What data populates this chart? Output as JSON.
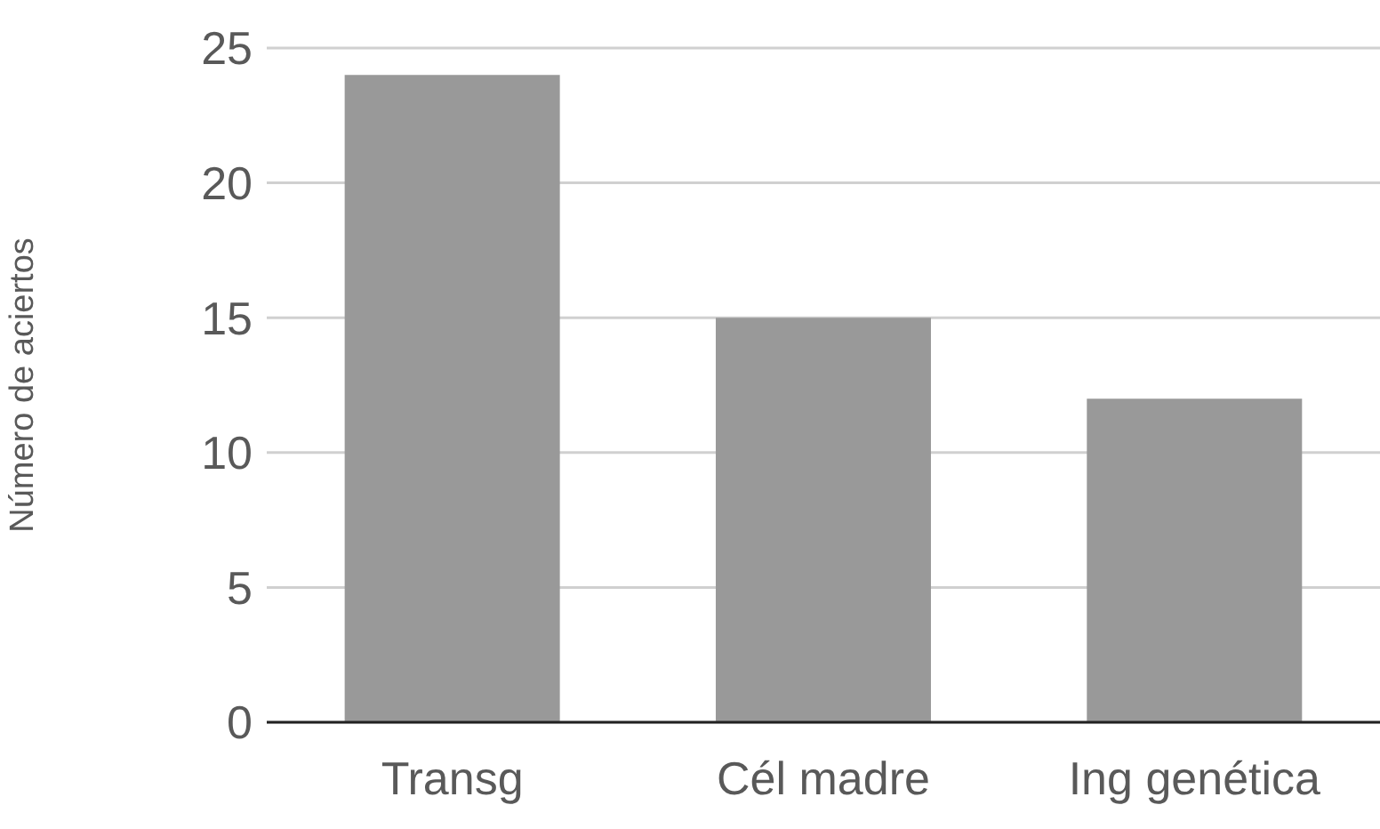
{
  "chart_data": {
    "type": "bar",
    "ylabel": "Número de aciertos",
    "categories": [
      "Transg",
      "Cél madre",
      "Ing genética"
    ],
    "values": [
      24,
      15,
      12
    ],
    "color": "#999999",
    "ylim": [
      0,
      25
    ],
    "yticks": [
      0,
      5,
      10,
      15,
      20,
      25
    ],
    "grid": "y"
  }
}
